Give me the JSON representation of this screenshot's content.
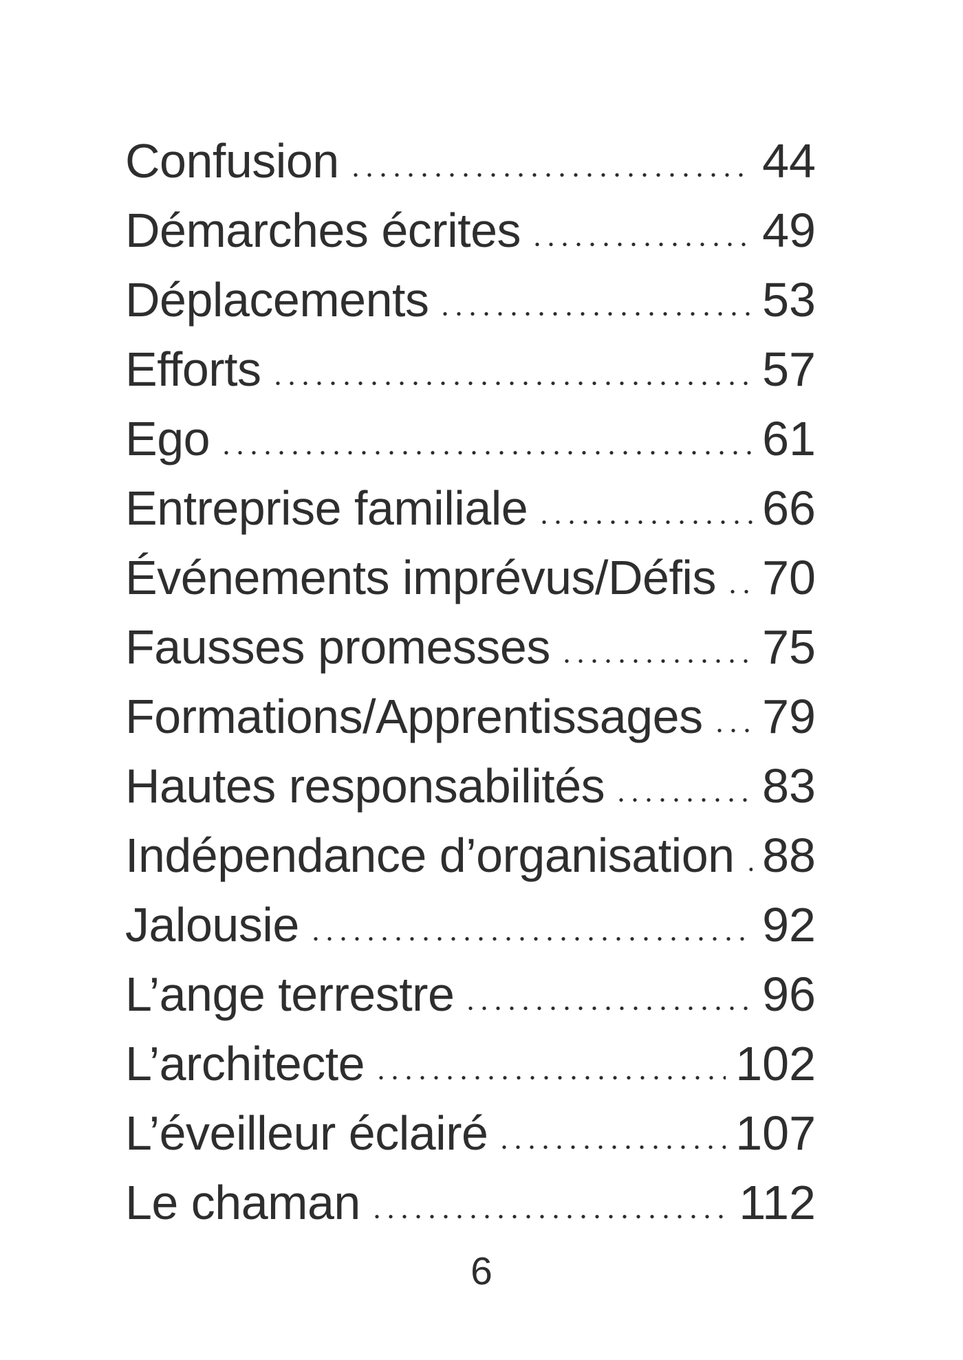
{
  "toc": {
    "entries": [
      {
        "title": "Confusion",
        "page": "44"
      },
      {
        "title": "Démarches écrites",
        "page": "49"
      },
      {
        "title": "Déplacements",
        "page": "53"
      },
      {
        "title": "Efforts",
        "page": "57"
      },
      {
        "title": "Ego",
        "page": "61"
      },
      {
        "title": "Entreprise familiale",
        "page": "66"
      },
      {
        "title": "Événements imprévus/Défis",
        "page": "70"
      },
      {
        "title": "Fausses promesses",
        "page": "75"
      },
      {
        "title": "Formations/Apprentissages",
        "page": "79"
      },
      {
        "title": "Hautes responsabilités",
        "page": "83"
      },
      {
        "title": "Indépendance d’organisation",
        "page": "88"
      },
      {
        "title": "Jalousie",
        "page": "92"
      },
      {
        "title": "L’ange terrestre",
        "page": "96"
      },
      {
        "title": "L’architecte",
        "page": "102"
      },
      {
        "title": "L’éveilleur éclairé",
        "page": "107"
      },
      {
        "title": "Le chaman",
        "page": "112"
      }
    ]
  },
  "footer": {
    "page_number": "6"
  },
  "colors": {
    "text": "#2e2e2e",
    "leader_dots": "#2b2b2b",
    "background": "#ffffff"
  }
}
